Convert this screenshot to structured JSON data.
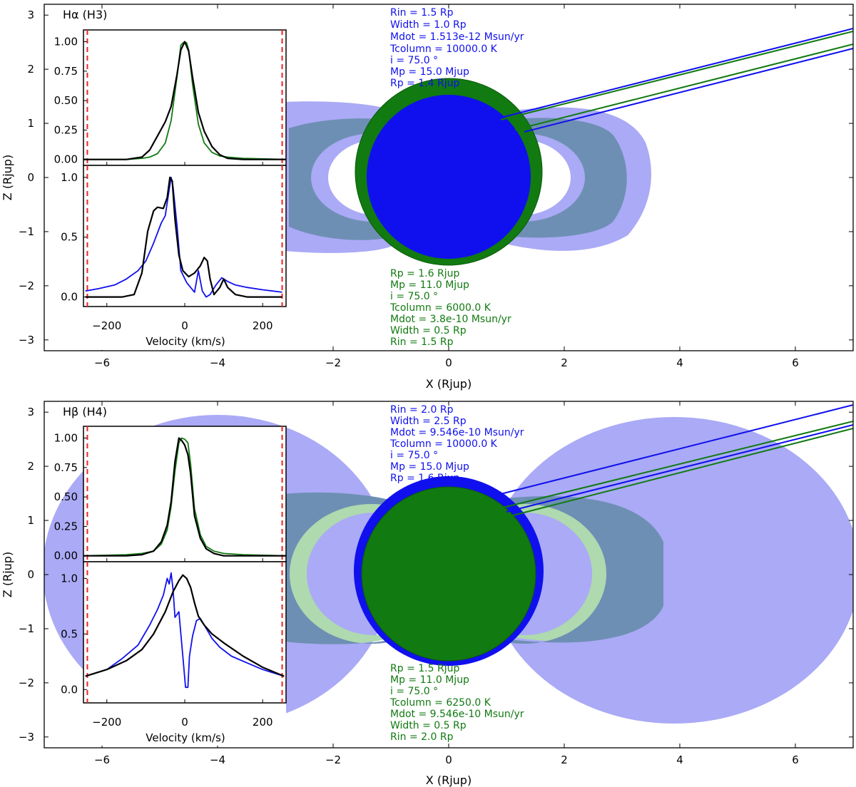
{
  "colors": {
    "blue": "#1010ee",
    "green": "#117a11",
    "black": "#000000",
    "red": "#ee2222",
    "blue_fill": "#aaaaf6",
    "green_fill": "#afd9af",
    "overlap_fill": "#6e8fb4"
  },
  "chart_data": [
    {
      "type": "line",
      "panel": "top",
      "title": "Hα (H3)",
      "xlabel": "X (Rjup)",
      "ylabel": "Z (Rjup)",
      "xlim": [
        -7,
        7
      ],
      "ylim": [
        -3.2,
        3.2
      ],
      "xticks": [
        -6,
        -4,
        -2,
        0,
        2,
        4,
        6
      ],
      "yticks": [
        -3,
        -2,
        -1,
        0,
        1,
        2,
        3
      ],
      "xtick_labels": [
        "−6",
        "−4",
        "−2",
        "0",
        "2",
        "4",
        "6"
      ],
      "ytick_labels": [
        "−3",
        "−2",
        "−1",
        "0",
        "1",
        "2",
        "3"
      ],
      "blue_model": {
        "label_lines": [
          "Rin = 1.5 Rp",
          "Width = 1.0 Rp",
          "Mdot = 1.513e-12 Msun/yr",
          "Tcolumn = 10000.0 K",
          "i = 75.0 °",
          "Mp = 15.0 Mjup",
          "Rp = 1.4 Rjup"
        ],
        "Rin_Rp": 1.5,
        "Width_Rp": 1.0,
        "Mdot_Msun_yr": 1.513e-12,
        "Tcolumn_K": 10000.0,
        "i_deg": 75.0,
        "Mp_Mjup": 15.0,
        "Rp_Rjup": 1.4
      },
      "green_model": {
        "label_lines": [
          "Rp = 1.6 Rjup",
          "Mp = 11.0 Mjup",
          "i = 75.0 °",
          "Tcolumn = 6000.0 K",
          "Mdot = 3.8e-10 Msun/yr",
          "Width = 0.5 Rp",
          "Rin = 1.5 Rp"
        ],
        "Rin_Rp": 1.5,
        "Width_Rp": 0.5,
        "Mdot_Msun_yr": 3.8e-10,
        "Tcolumn_K": 6000.0,
        "i_deg": 75.0,
        "Mp_Mjup": 11.0,
        "Rp_Rjup": 1.6
      },
      "inset": {
        "xlabel": "Velocity (km/s)",
        "xlim": [
          -260,
          260
        ],
        "xticks": [
          -200,
          0,
          200
        ],
        "xtick_labels": [
          "−200",
          "0",
          "200"
        ],
        "yticks": [
          0.0,
          0.25,
          0.5,
          0.75,
          1.0
        ],
        "ytick_labels": [
          "0.00",
          "0.25",
          "0.50",
          "0.75",
          "1.00"
        ],
        "lower_yticks": [
          0.0,
          0.5,
          1.0
        ],
        "lower_ytick_labels": [
          "0.0",
          "0.5",
          "1.0"
        ],
        "red_dashed_x": [
          -250,
          250
        ],
        "upper_series": [
          {
            "name": "green observed",
            "color": "green",
            "x": [
              -260,
              -150,
              -110,
              -90,
              -70,
              -50,
              -35,
              -20,
              -10,
              -5,
              0,
              5,
              10,
              20,
              35,
              50,
              70,
              90,
              110,
              150,
              260
            ],
            "y": [
              0.0,
              0.0,
              0.01,
              0.02,
              0.05,
              0.14,
              0.33,
              0.7,
              0.97,
              0.99,
              1.0,
              0.99,
              0.93,
              0.64,
              0.3,
              0.14,
              0.06,
              0.03,
              0.02,
              0.01,
              0.0
            ]
          },
          {
            "name": "black model",
            "color": "black",
            "x": [
              -260,
              -150,
              -110,
              -90,
              -70,
              -50,
              -35,
              -20,
              -10,
              0,
              10,
              20,
              35,
              50,
              70,
              90,
              110,
              150,
              260
            ],
            "y": [
              0.0,
              0.0,
              0.02,
              0.08,
              0.2,
              0.32,
              0.45,
              0.72,
              0.93,
              1.0,
              0.92,
              0.7,
              0.4,
              0.24,
              0.11,
              0.04,
              0.01,
              0.0,
              0.0
            ]
          }
        ],
        "lower_series": [
          {
            "name": "blue observed",
            "color": "blue",
            "x": [
              -255,
              -220,
              -180,
              -150,
              -120,
              -100,
              -80,
              -60,
              -50,
              -40,
              -35,
              -30,
              -20,
              -10,
              5,
              15,
              25,
              35,
              45,
              55,
              65,
              80,
              95,
              110,
              130,
              160,
              200,
              250
            ],
            "y": [
              0.05,
              0.07,
              0.1,
              0.15,
              0.22,
              0.3,
              0.45,
              0.62,
              0.68,
              0.9,
              1.0,
              0.92,
              0.6,
              0.22,
              0.12,
              0.08,
              0.04,
              0.22,
              0.05,
              0.0,
              0.02,
              0.1,
              0.16,
              0.13,
              0.1,
              0.08,
              0.06,
              0.04
            ]
          },
          {
            "name": "black model",
            "color": "black",
            "x": [
              -255,
              -160,
              -130,
              -110,
              -95,
              -80,
              -70,
              -55,
              -45,
              -38,
              -32,
              -25,
              -15,
              -5,
              10,
              25,
              40,
              50,
              58,
              65,
              75,
              90,
              100,
              110,
              130,
              160,
              250
            ],
            "y": [
              0.0,
              0.0,
              0.02,
              0.2,
              0.55,
              0.72,
              0.75,
              0.74,
              0.83,
              1.0,
              0.97,
              0.65,
              0.35,
              0.22,
              0.17,
              0.2,
              0.26,
              0.33,
              0.3,
              0.15,
              0.02,
              0.08,
              0.15,
              0.08,
              0.02,
              0.0,
              0.0
            ]
          }
        ]
      }
    },
    {
      "type": "line",
      "panel": "bottom",
      "title": "Hβ (H4)",
      "xlabel": "X (Rjup)",
      "ylabel": "Z (Rjup)",
      "xlim": [
        -7,
        7
      ],
      "ylim": [
        -3.2,
        3.2
      ],
      "xticks": [
        -6,
        -4,
        -2,
        0,
        2,
        4,
        6
      ],
      "yticks": [
        -3,
        -2,
        -1,
        0,
        1,
        2,
        3
      ],
      "xtick_labels": [
        "−6",
        "−4",
        "−2",
        "0",
        "2",
        "4",
        "6"
      ],
      "ytick_labels": [
        "−3",
        "−2",
        "−1",
        "0",
        "1",
        "2",
        "3"
      ],
      "blue_model": {
        "label_lines": [
          "Rin = 2.0 Rp",
          "Width = 2.5 Rp",
          "Mdot = 9.546e-10 Msun/yr",
          "Tcolumn = 10000.0 K",
          "i = 75.0 °",
          "Mp = 15.0 Mjup",
          "Rp = 1.6 Rjup"
        ],
        "Rin_Rp": 2.0,
        "Width_Rp": 2.5,
        "Mdot_Msun_yr": 9.546e-10,
        "Tcolumn_K": 10000.0,
        "i_deg": 75.0,
        "Mp_Mjup": 15.0,
        "Rp_Rjup": 1.6
      },
      "green_model": {
        "label_lines": [
          "Rp = 1.5 Rjup",
          "Mp = 11.0 Mjup",
          "i = 75.0 °",
          "Tcolumn = 6250.0 K",
          "Mdot = 9.546e-10 Msun/yr",
          "Width = 0.5 Rp",
          "Rin = 2.0 Rp"
        ],
        "Rin_Rp": 2.0,
        "Width_Rp": 0.5,
        "Mdot_Msun_yr": 9.546e-10,
        "Tcolumn_K": 6250.0,
        "i_deg": 75.0,
        "Mp_Mjup": 11.0,
        "Rp_Rjup": 1.5
      },
      "inset": {
        "xlabel": "Velocity (km/s)",
        "xlim": [
          -260,
          260
        ],
        "xticks": [
          -200,
          0,
          200
        ],
        "xtick_labels": [
          "−200",
          "0",
          "200"
        ],
        "yticks": [
          0.0,
          0.25,
          0.5,
          0.75,
          1.0
        ],
        "ytick_labels": [
          "0.00",
          "0.25",
          "0.50",
          "0.75",
          "1.00"
        ],
        "lower_yticks": [
          0.0,
          0.5,
          1.0
        ],
        "lower_ytick_labels": [
          "0.0",
          "0.5",
          "1.0"
        ],
        "red_dashed_x": [
          -250,
          250
        ],
        "upper_series": [
          {
            "name": "green observed",
            "color": "green",
            "x": [
              -260,
              -150,
              -110,
              -80,
              -60,
              -45,
              -35,
              -25,
              -15,
              -8,
              0,
              8,
              15,
              25,
              40,
              55,
              75,
              100,
              150,
              260
            ],
            "y": [
              0.0,
              0.01,
              0.02,
              0.04,
              0.1,
              0.22,
              0.42,
              0.72,
              0.96,
              1.0,
              0.99,
              0.96,
              0.78,
              0.4,
              0.18,
              0.08,
              0.04,
              0.02,
              0.01,
              0.0
            ]
          },
          {
            "name": "black model",
            "color": "black",
            "x": [
              -260,
              -150,
              -110,
              -80,
              -60,
              -45,
              -35,
              -25,
              -15,
              -8,
              0,
              8,
              15,
              25,
              40,
              55,
              75,
              100,
              150,
              260
            ],
            "y": [
              0.0,
              0.0,
              0.01,
              0.04,
              0.12,
              0.26,
              0.46,
              0.8,
              1.0,
              0.98,
              0.94,
              0.86,
              0.7,
              0.34,
              0.15,
              0.06,
              0.02,
              0.0,
              0.0,
              0.0
            ]
          }
        ],
        "lower_series": [
          {
            "name": "blue observed",
            "color": "blue",
            "x": [
              -255,
              -200,
              -160,
              -120,
              -90,
              -70,
              -55,
              -45,
              -40,
              -35,
              -30,
              -25,
              -15,
              -5,
              2,
              8,
              12,
              20,
              30,
              40,
              50,
              60,
              70,
              90,
              120,
              160,
              200,
              255
            ],
            "y": [
              0.12,
              0.18,
              0.28,
              0.4,
              0.58,
              0.72,
              0.85,
              1.0,
              0.95,
              1.05,
              0.9,
              0.65,
              0.7,
              0.3,
              0.02,
              0.02,
              0.3,
              0.48,
              0.62,
              0.64,
              0.58,
              0.52,
              0.46,
              0.38,
              0.3,
              0.24,
              0.18,
              0.12
            ]
          },
          {
            "name": "black model",
            "color": "black",
            "x": [
              -255,
              -200,
              -150,
              -110,
              -80,
              -50,
              -30,
              -15,
              -5,
              5,
              15,
              25,
              35,
              50,
              70,
              100,
              150,
              200,
              255
            ],
            "y": [
              0.12,
              0.18,
              0.26,
              0.36,
              0.5,
              0.7,
              0.88,
              0.98,
              1.03,
              1.0,
              0.92,
              0.78,
              0.66,
              0.58,
              0.5,
              0.42,
              0.3,
              0.2,
              0.12
            ]
          }
        ]
      }
    }
  ]
}
